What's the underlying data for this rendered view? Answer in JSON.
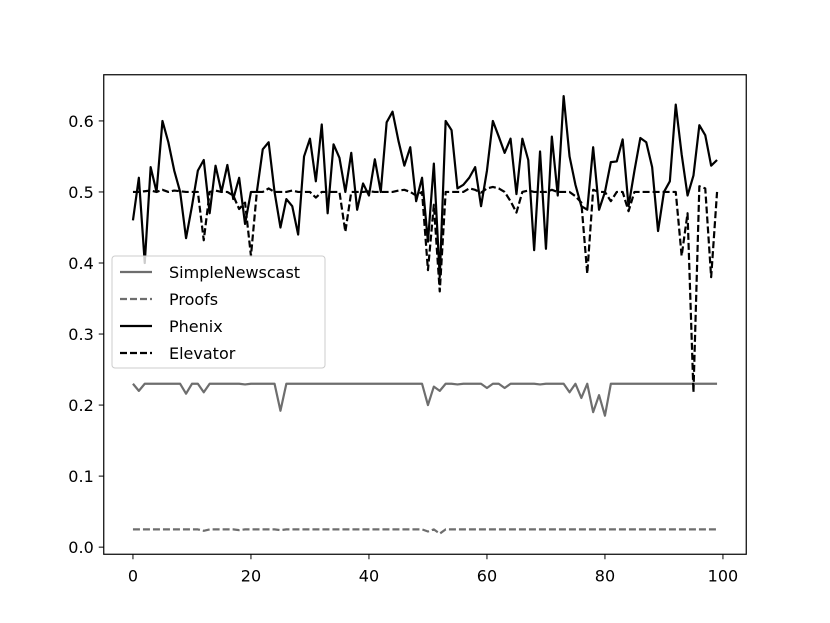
{
  "chart_data": {
    "type": "line",
    "title": "",
    "xlabel": "",
    "ylabel": "",
    "xlim": [
      -4.95,
      103.95
    ],
    "ylim": [
      -0.01,
      0.665
    ],
    "xticks": [
      0,
      20,
      40,
      60,
      80,
      100
    ],
    "yticks": [
      0.0,
      0.1,
      0.2,
      0.3,
      0.4,
      0.5,
      0.6
    ],
    "ytick_labels": [
      "0.0",
      "0.1",
      "0.2",
      "0.3",
      "0.4",
      "0.5",
      "0.6"
    ],
    "grid": false,
    "legend_position": "center-left",
    "x": [
      0,
      1,
      2,
      3,
      4,
      5,
      6,
      7,
      8,
      9,
      10,
      11,
      12,
      13,
      14,
      15,
      16,
      17,
      18,
      19,
      20,
      21,
      22,
      23,
      24,
      25,
      26,
      27,
      28,
      29,
      30,
      31,
      32,
      33,
      34,
      35,
      36,
      37,
      38,
      39,
      40,
      41,
      42,
      43,
      44,
      45,
      46,
      47,
      48,
      49,
      50,
      51,
      52,
      53,
      54,
      55,
      56,
      57,
      58,
      59,
      60,
      61,
      62,
      63,
      64,
      65,
      66,
      67,
      68,
      69,
      70,
      71,
      72,
      73,
      74,
      75,
      76,
      77,
      78,
      79,
      80,
      81,
      82,
      83,
      84,
      85,
      86,
      87,
      88,
      89,
      90,
      91,
      92,
      93,
      94,
      95,
      96,
      97,
      98,
      99
    ],
    "series": [
      {
        "name": "SimpleNewscast",
        "color": "#6e6e6e",
        "dash": "solid",
        "values": [
          0.23,
          0.22,
          0.23,
          0.23,
          0.23,
          0.23,
          0.23,
          0.23,
          0.23,
          0.216,
          0.23,
          0.23,
          0.218,
          0.23,
          0.23,
          0.23,
          0.23,
          0.23,
          0.23,
          0.229,
          0.23,
          0.23,
          0.23,
          0.23,
          0.23,
          0.192,
          0.23,
          0.23,
          0.23,
          0.23,
          0.23,
          0.23,
          0.23,
          0.23,
          0.23,
          0.23,
          0.23,
          0.23,
          0.23,
          0.23,
          0.23,
          0.23,
          0.23,
          0.23,
          0.23,
          0.23,
          0.23,
          0.23,
          0.23,
          0.23,
          0.2,
          0.226,
          0.22,
          0.23,
          0.23,
          0.229,
          0.23,
          0.23,
          0.23,
          0.23,
          0.224,
          0.23,
          0.23,
          0.224,
          0.23,
          0.23,
          0.23,
          0.23,
          0.23,
          0.229,
          0.23,
          0.23,
          0.23,
          0.23,
          0.218,
          0.23,
          0.21,
          0.23,
          0.19,
          0.214,
          0.185,
          0.23,
          0.23,
          0.23,
          0.23,
          0.23,
          0.23,
          0.23,
          0.23,
          0.23,
          0.23,
          0.23,
          0.23,
          0.23,
          0.23,
          0.23,
          0.23,
          0.23,
          0.23,
          0.23
        ]
      },
      {
        "name": "Proofs",
        "color": "#6e6e6e",
        "dash": "dashed",
        "values": [
          0.025,
          0.025,
          0.025,
          0.025,
          0.025,
          0.025,
          0.025,
          0.025,
          0.025,
          0.025,
          0.025,
          0.025,
          0.023,
          0.025,
          0.025,
          0.025,
          0.025,
          0.025,
          0.024,
          0.025,
          0.025,
          0.025,
          0.025,
          0.025,
          0.025,
          0.024,
          0.025,
          0.025,
          0.025,
          0.025,
          0.025,
          0.025,
          0.025,
          0.025,
          0.025,
          0.025,
          0.025,
          0.025,
          0.025,
          0.025,
          0.025,
          0.025,
          0.025,
          0.025,
          0.025,
          0.025,
          0.025,
          0.025,
          0.025,
          0.025,
          0.022,
          0.025,
          0.019,
          0.025,
          0.025,
          0.025,
          0.025,
          0.025,
          0.025,
          0.025,
          0.025,
          0.025,
          0.025,
          0.025,
          0.025,
          0.025,
          0.025,
          0.025,
          0.025,
          0.025,
          0.025,
          0.025,
          0.025,
          0.025,
          0.025,
          0.025,
          0.025,
          0.025,
          0.025,
          0.025,
          0.025,
          0.025,
          0.025,
          0.025,
          0.025,
          0.025,
          0.025,
          0.025,
          0.025,
          0.025,
          0.025,
          0.025,
          0.025,
          0.025,
          0.025,
          0.025,
          0.025,
          0.025,
          0.025,
          0.025
        ]
      },
      {
        "name": "Phenix",
        "color": "#000000",
        "dash": "solid",
        "values": [
          0.46,
          0.52,
          0.4,
          0.535,
          0.5,
          0.6,
          0.57,
          0.53,
          0.5,
          0.435,
          0.48,
          0.53,
          0.545,
          0.47,
          0.537,
          0.5,
          0.538,
          0.49,
          0.52,
          0.455,
          0.5,
          0.5,
          0.56,
          0.57,
          0.5,
          0.45,
          0.49,
          0.48,
          0.44,
          0.55,
          0.575,
          0.515,
          0.595,
          0.47,
          0.567,
          0.548,
          0.5,
          0.555,
          0.475,
          0.512,
          0.495,
          0.546,
          0.5,
          0.598,
          0.613,
          0.572,
          0.537,
          0.563,
          0.487,
          0.52,
          0.43,
          0.54,
          0.38,
          0.6,
          0.587,
          0.505,
          0.51,
          0.52,
          0.535,
          0.48,
          0.53,
          0.6,
          0.578,
          0.555,
          0.575,
          0.497,
          0.575,
          0.545,
          0.418,
          0.557,
          0.42,
          0.578,
          0.495,
          0.635,
          0.55,
          0.51,
          0.48,
          0.475,
          0.563,
          0.475,
          0.5,
          0.542,
          0.543,
          0.574,
          0.48,
          0.53,
          0.576,
          0.57,
          0.535,
          0.445,
          0.5,
          0.515,
          0.623,
          0.553,
          0.495,
          0.523,
          0.594,
          0.58,
          0.537,
          0.545
        ]
      },
      {
        "name": "Elevator",
        "color": "#000000",
        "dash": "dashed",
        "values": [
          0.5,
          0.5,
          0.501,
          0.502,
          0.5,
          0.503,
          0.5,
          0.502,
          0.501,
          0.5,
          0.5,
          0.5,
          0.432,
          0.5,
          0.502,
          0.5,
          0.5,
          0.495,
          0.476,
          0.485,
          0.41,
          0.5,
          0.5,
          0.505,
          0.5,
          0.5,
          0.5,
          0.502,
          0.5,
          0.5,
          0.5,
          0.492,
          0.5,
          0.5,
          0.5,
          0.5,
          0.444,
          0.5,
          0.5,
          0.5,
          0.501,
          0.5,
          0.5,
          0.5,
          0.5,
          0.502,
          0.503,
          0.5,
          0.495,
          0.5,
          0.39,
          0.482,
          0.36,
          0.5,
          0.5,
          0.5,
          0.5,
          0.505,
          0.503,
          0.499,
          0.505,
          0.507,
          0.505,
          0.5,
          0.487,
          0.471,
          0.5,
          0.502,
          0.5,
          0.5,
          0.5,
          0.503,
          0.5,
          0.5,
          0.5,
          0.494,
          0.485,
          0.385,
          0.503,
          0.5,
          0.5,
          0.487,
          0.5,
          0.5,
          0.473,
          0.5,
          0.5,
          0.5,
          0.5,
          0.5,
          0.5,
          0.5,
          0.5,
          0.41,
          0.47,
          0.218,
          0.508,
          0.505,
          0.38,
          0.5
        ]
      }
    ]
  }
}
